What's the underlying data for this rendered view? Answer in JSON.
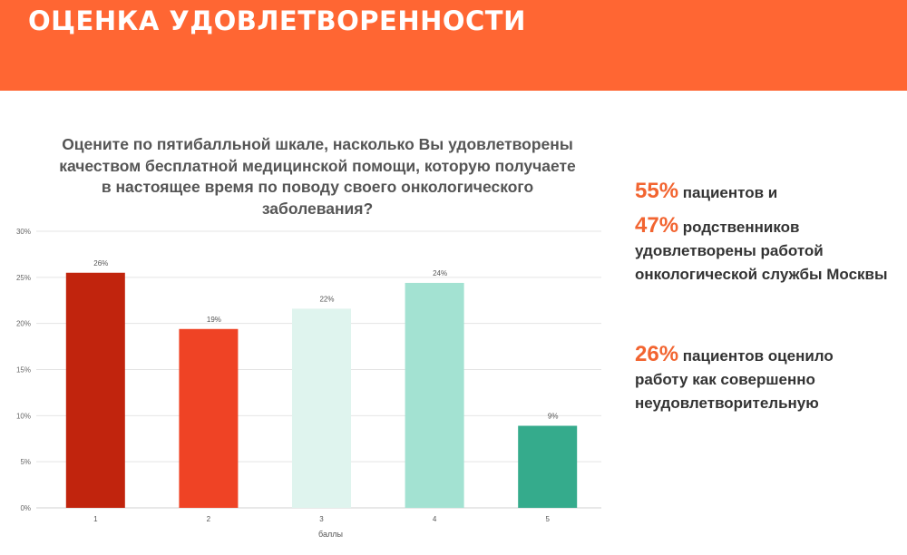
{
  "header": {
    "title": "ОЦЕНКА УДОВЛЕТВОРЕННОСТИ"
  },
  "colors": {
    "header": "#ff6633",
    "accent": "#f26430"
  },
  "facts": {
    "p1_value": "55%",
    "p1_text": " пациентов и",
    "p2_value": "47%",
    "p2_text": " родственников",
    "p2_line2": "удовлетворены работой",
    "p2_line3": "онкологической службы Москвы",
    "p3_value": "26%",
    "p3_text": " пациентов оценило",
    "p3_line2": "работу как совершенно",
    "p3_line3": "неудовлетворительную"
  },
  "chart_data": {
    "type": "bar",
    "title": "Оцените по пятибалльной шкале, насколько Вы удовлетворены качеством бесплатной медицинской помощи, которую получаете в настоящее время по поводу своего онкологического заболевания?",
    "xlabel": "баллы",
    "ylabel": "",
    "categories": [
      "1",
      "2",
      "3",
      "4",
      "5"
    ],
    "values": [
      25.5,
      19.4,
      21.6,
      24.4,
      8.9
    ],
    "data_labels": [
      "26%",
      "19%",
      "22%",
      "24%",
      "9%"
    ],
    "bar_colors": [
      "#c1240d",
      "#ef4325",
      "#dff4ee",
      "#a3e2d2",
      "#35ab8c"
    ],
    "ylim": [
      0,
      30
    ],
    "yticks": [
      "0%",
      "5%",
      "10%",
      "15%",
      "20%",
      "25%",
      "30%"
    ],
    "grid": true
  }
}
